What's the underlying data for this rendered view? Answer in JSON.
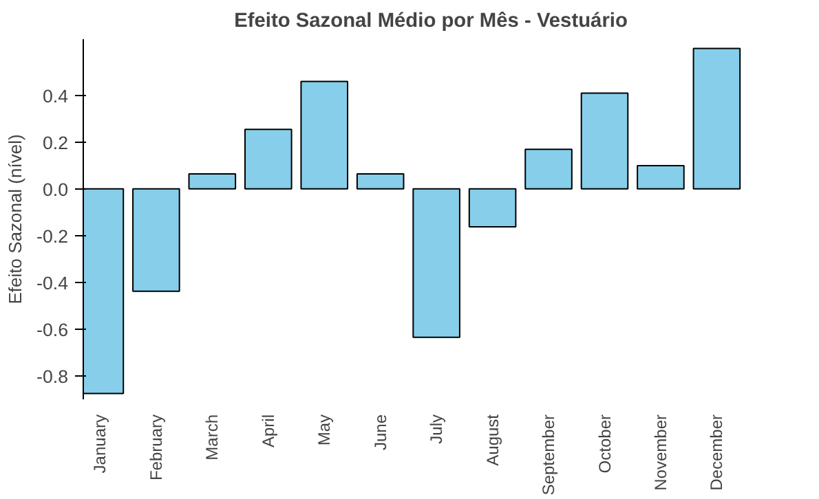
{
  "chart_data": {
    "type": "bar",
    "title": "Efeito Sazonal Médio por Mês - Vestuário",
    "ylabel": "Efeito Sazonal (nível)",
    "categories": [
      "January",
      "February",
      "March",
      "April",
      "May",
      "June",
      "July",
      "August",
      "September",
      "October",
      "November",
      "December"
    ],
    "values": [
      -0.875,
      -0.438,
      0.064,
      0.254,
      0.459,
      0.064,
      -0.635,
      -0.162,
      0.169,
      0.409,
      0.099,
      0.6
    ],
    "color": "#87ceeb",
    "ylim": [
      -0.9,
      0.64
    ],
    "yticks": [
      -0.8,
      -0.6,
      -0.4,
      -0.2,
      {
        "value": 0,
        "label": "0.0"
      },
      0.2,
      0.4
    ],
    "grid": false
  }
}
